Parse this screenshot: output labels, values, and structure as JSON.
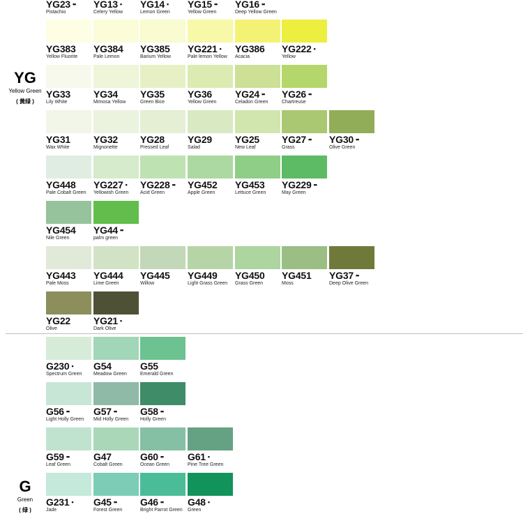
{
  "groups": [
    {
      "code": "YG",
      "name": "Yellow Green",
      "cn": "( 黄绿 )"
    },
    {
      "code": "G",
      "name": "Green",
      "cn": "( 绿 )"
    }
  ],
  "swatches": [
    {
      "code": "YG23",
      "name": "Pistachio",
      "dots": "••",
      "color": "#f4f7e4"
    },
    {
      "code": "YG13",
      "name": "Celery Yellow",
      "dots": "•",
      "color": "#f0f5cc"
    },
    {
      "code": "YG14",
      "name": "Lemon Green",
      "dots": "•",
      "color": "#eef3c0"
    },
    {
      "code": "YG15",
      "name": "Yellow Green",
      "dots": "••",
      "color": "#e8f0a8"
    },
    {
      "code": "YG16",
      "name": "Deep Yellow Green",
      "dots": "••",
      "color": "#dfea88"
    },
    {
      "code": "YG383",
      "name": "Yellow Fluorite",
      "dots": "",
      "color": "#fdfee4"
    },
    {
      "code": "YG384",
      "name": "Pale Lemon",
      "dots": "",
      "color": "#fbfdd8"
    },
    {
      "code": "YG385",
      "name": "Barium Yellow",
      "dots": "",
      "color": "#f9fbd0"
    },
    {
      "code": "YG221",
      "name": "Pale lemon Yellow",
      "dots": "•",
      "color": "#f7f8a8"
    },
    {
      "code": "YG386",
      "name": "Acacia",
      "dots": "",
      "color": "#f4f274"
    },
    {
      "code": "YG222",
      "name": "Yellow",
      "dots": "•",
      "color": "#ecee40"
    },
    {
      "code": "YG33",
      "name": "Lily White",
      "dots": "",
      "color": "#f6f9ec"
    },
    {
      "code": "YG34",
      "name": "Mimosa Yellow",
      "dots": "",
      "color": "#eef5d8"
    },
    {
      "code": "YG35",
      "name": "Green Bice",
      "dots": "",
      "color": "#e6f0c4"
    },
    {
      "code": "YG36",
      "name": "Yellow Green",
      "dots": "",
      "color": "#dcebb2"
    },
    {
      "code": "YG24",
      "name": "Celadon Green",
      "dots": "••",
      "color": "#cce196"
    },
    {
      "code": "YG26",
      "name": "Chartreuse",
      "dots": "••",
      "color": "#b5d66a"
    },
    {
      "code": "YG31",
      "name": "Wax White",
      "dots": "",
      "color": "#f1f6e8"
    },
    {
      "code": "YG32",
      "name": "Mignonette",
      "dots": "",
      "color": "#ebf3de"
    },
    {
      "code": "YG28",
      "name": "Pressed Leaf",
      "dots": "",
      "color": "#e4efd4"
    },
    {
      "code": "YG29",
      "name": "Salad",
      "dots": "",
      "color": "#d9eac3"
    },
    {
      "code": "YG25",
      "name": "New Leaf",
      "dots": "",
      "color": "#d0e6ae"
    },
    {
      "code": "YG27",
      "name": "Grass",
      "dots": "••",
      "color": "#a9c871"
    },
    {
      "code": "YG30",
      "name": "Olive Green",
      "dots": "••",
      "color": "#92ad58"
    },
    {
      "code": "YG448",
      "name": "Pale Cobalt Green",
      "dots": "",
      "color": "#e0ede3"
    },
    {
      "code": "YG227",
      "name": "Yellowish Green",
      "dots": "•",
      "color": "#d5ebcc"
    },
    {
      "code": "YG228",
      "name": "Acid Green",
      "dots": "••",
      "color": "#bfe2b2"
    },
    {
      "code": "YG452",
      "name": "Apple Green",
      "dots": "",
      "color": "#acd8a2"
    },
    {
      "code": "YG453",
      "name": "Lettuce Green",
      "dots": "",
      "color": "#8fce86"
    },
    {
      "code": "YG229",
      "name": "May Green",
      "dots": "••",
      "color": "#5dbb65"
    },
    {
      "code": "YG454",
      "name": "Nile Green",
      "dots": "",
      "color": "#96c39c"
    },
    {
      "code": "YG44",
      "name": "palm green",
      "dots": "••",
      "color": "#63bd4c"
    },
    {
      "code": "YG443",
      "name": "Pale Moss",
      "dots": "",
      "color": "#e1e9d9"
    },
    {
      "code": "YG444",
      "name": "Lime Green",
      "dots": "",
      "color": "#d1e3c4"
    },
    {
      "code": "YG445",
      "name": "Willow",
      "dots": "",
      "color": "#c3d8b8"
    },
    {
      "code": "YG449",
      "name": "Light Grass Green",
      "dots": "",
      "color": "#b6d5a6"
    },
    {
      "code": "YG450",
      "name": "Grass Green",
      "dots": "",
      "color": "#acd59f"
    },
    {
      "code": "YG451",
      "name": "Moss",
      "dots": "",
      "color": "#9bbe85"
    },
    {
      "code": "YG37",
      "name": "Deep Olive Green",
      "dots": "••",
      "color": "#6f7a3a"
    },
    {
      "code": "YG22",
      "name": "Olive",
      "dots": "",
      "color": "#8c8e5c"
    },
    {
      "code": "YG21",
      "name": "Dark Olive",
      "dots": "•",
      "color": "#4e5136"
    },
    {
      "code": "G230",
      "name": "Spectrum Green",
      "dots": "•",
      "color": "#d6ecd8"
    },
    {
      "code": "G54",
      "name": "Meadow Green",
      "dots": "",
      "color": "#a1d6b8"
    },
    {
      "code": "G55",
      "name": "Emerald Green",
      "dots": "",
      "color": "#6cc290"
    },
    {
      "code": "G56",
      "name": "Light Holly Green",
      "dots": "••",
      "color": "#c8e6d5"
    },
    {
      "code": "G57",
      "name": "Mid Holly Green",
      "dots": "••",
      "color": "#8fbaa7"
    },
    {
      "code": "G58",
      "name": "Holly Green",
      "dots": "••",
      "color": "#3f8c68"
    },
    {
      "code": "G59",
      "name": "Leaf Green",
      "dots": "••",
      "color": "#bfe3cf"
    },
    {
      "code": "G47",
      "name": "Cobalt Green",
      "dots": "",
      "color": "#a9d7b8"
    },
    {
      "code": "G60",
      "name": "Ocean Green",
      "dots": "••",
      "color": "#86c0a4"
    },
    {
      "code": "G61",
      "name": "Pine Tree Green",
      "dots": "•",
      "color": "#64a283"
    },
    {
      "code": "G231",
      "name": "Jade",
      "dots": "•",
      "color": "#c5e9da"
    },
    {
      "code": "G45",
      "name": "Forest Green",
      "dots": "••",
      "color": "#7dcdb6"
    },
    {
      "code": "G46",
      "name": "Bright Parrot Green",
      "dots": "••",
      "color": "#4abd98"
    },
    {
      "code": "G48",
      "name": "Green",
      "dots": "•",
      "color": "#12935c"
    }
  ]
}
